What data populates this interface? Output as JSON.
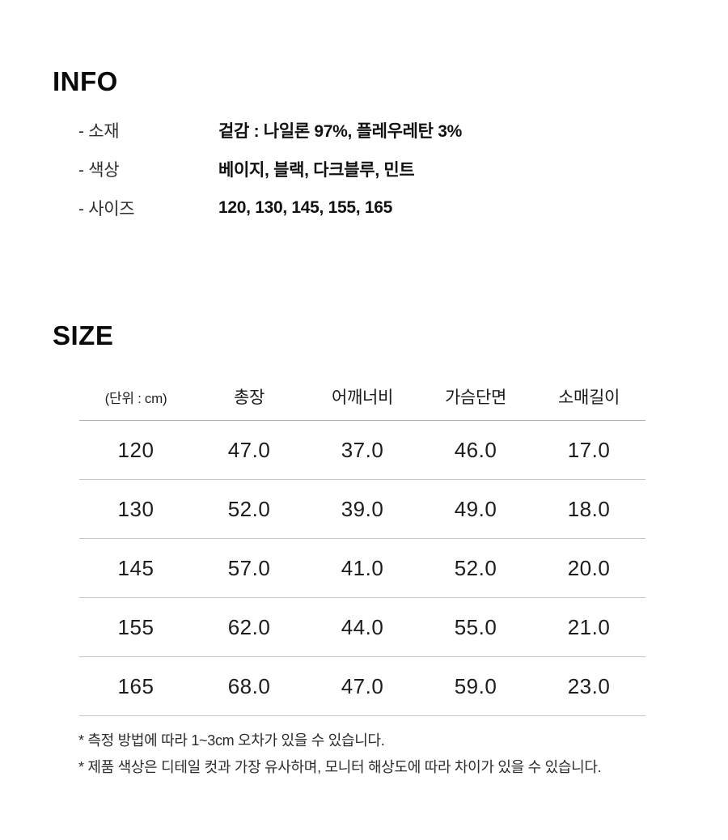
{
  "page": {
    "background_color": "#ffffff",
    "text_color": "#111111",
    "muted_text_color": "#2e2e2e",
    "header_line_color": "#aeaeae",
    "row_line_color": "#c6c6c6"
  },
  "info": {
    "heading": "INFO",
    "rows": [
      {
        "label": "- 소재",
        "value": "겉감 : 나일론 97%, 플레우레탄 3%"
      },
      {
        "label": "- 색상",
        "value": "베이지, 블랙, 다크블루, 민트"
      },
      {
        "label": "- 사이즈",
        "value": "120, 130, 145, 155, 165"
      }
    ]
  },
  "size": {
    "heading": "SIZE",
    "table": {
      "unit_label": "(단위 : cm)",
      "columns": [
        "총장",
        "어깨너비",
        "가슴단면",
        "소매길이"
      ],
      "rows": [
        [
          "120",
          "47.0",
          "37.0",
          "46.0",
          "17.0"
        ],
        [
          "130",
          "52.0",
          "39.0",
          "49.0",
          "18.0"
        ],
        [
          "145",
          "57.0",
          "41.0",
          "52.0",
          "20.0"
        ],
        [
          "155",
          "62.0",
          "44.0",
          "55.0",
          "21.0"
        ],
        [
          "165",
          "68.0",
          "47.0",
          "59.0",
          "23.0"
        ]
      ]
    },
    "notes": [
      "* 측정 방법에 따라 1~3cm 오차가 있을 수 있습니다.",
      "* 제품 색상은 디테일 컷과 가장 유사하며, 모니터 해상도에 따라 차이가 있을 수 있습니다."
    ]
  }
}
